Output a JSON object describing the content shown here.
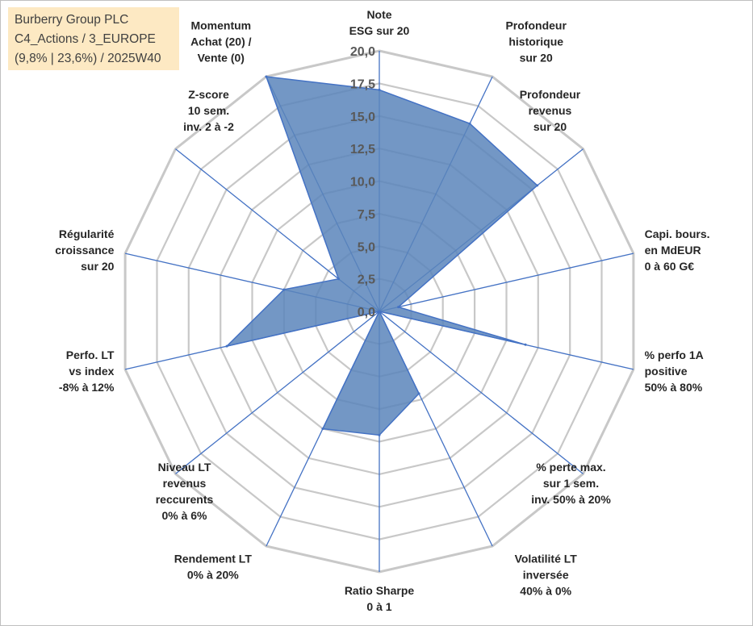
{
  "info": {
    "line1": "Burberry Group PLC",
    "line2": "C4_Actions / 3_EUROPE",
    "line3": "(9,8% | 23,6%) / 2025W40"
  },
  "colors": {
    "fill": "#5b85bb",
    "stroke": "#4472c4",
    "grid": "#c8c8c8",
    "tick": "#595959"
  },
  "chart_data": {
    "type": "radar",
    "range": [
      0,
      20
    ],
    "tick_step": 2.5,
    "tick_labels": [
      "0,0",
      "2,5",
      "5,0",
      "7,5",
      "10,0",
      "12,5",
      "15,0",
      "17,5",
      "20,0"
    ],
    "grid": true,
    "axes": [
      {
        "label": [
          "Note",
          "ESG sur 20"
        ],
        "value": 17.0
      },
      {
        "label": [
          "Profondeur",
          "historique",
          "sur 20"
        ],
        "value": 16.0
      },
      {
        "label": [
          "Profondeur",
          "revenus",
          "sur 20"
        ],
        "value": 15.5
      },
      {
        "label": [
          "Capi. bours.",
          "en MdEUR",
          "0 à 60 G€"
        ],
        "value": 1.5
      },
      {
        "label": [
          "% perfo 1A",
          "positive",
          "50% à 80%"
        ],
        "value": 11.5
      },
      {
        "label": [
          "% perte max.",
          "sur 1 sem.",
          "inv. 50% à 20%"
        ],
        "value": 0.0
      },
      {
        "label": [
          "Volatilité LT",
          "inversée",
          "40% à 0%"
        ],
        "value": 7.0
      },
      {
        "label": [
          "Ratio Sharpe",
          "0 à 1"
        ],
        "value": 9.5
      },
      {
        "label": [
          "Rendement LT",
          "0% à 20%"
        ],
        "value": 10.0
      },
      {
        "label": [
          "Niveau LT",
          "revenus",
          "reccurents",
          "0% à 6%"
        ],
        "value": 0.0
      },
      {
        "label": [
          "Perfo. LT",
          "vs index",
          "-8% à 12%"
        ],
        "value": 12.0
      },
      {
        "label": [
          "Régularité",
          "croissance",
          "sur 20"
        ],
        "value": 7.5
      },
      {
        "label": [
          "Z-score",
          "10 sem.",
          "inv. 2 à -2"
        ],
        "value": 4.0
      },
      {
        "label": [
          "Momentum",
          "Achat (20) /",
          "Vente (0)"
        ],
        "value": 20.0
      }
    ]
  }
}
